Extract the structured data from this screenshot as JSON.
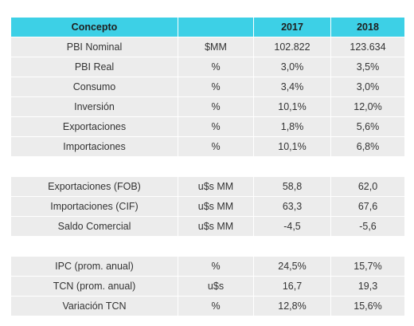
{
  "header": [
    "Concepto",
    "",
    "2017",
    "2018"
  ],
  "rows": [
    [
      "PBI Nominal",
      "$MM",
      "102.822",
      "123.634"
    ],
    [
      "PBI Real",
      "%",
      "3,0%",
      "3,5%"
    ],
    [
      "Consumo",
      "%",
      "3,4%",
      "3,0%"
    ],
    [
      "Inversión",
      "%",
      "10,1%",
      "12,0%"
    ],
    [
      "Exportaciones",
      "%",
      "1,8%",
      "5,6%"
    ],
    [
      "Importaciones",
      "%",
      "10,1%",
      "6,8%"
    ],
    [],
    [
      "Exportaciones (FOB)",
      "u$s MM",
      "58,8",
      "62,0"
    ],
    [
      "Importaciones (CIF)",
      "u$s MM",
      "63,3",
      "67,6"
    ],
    [
      "Saldo Comercial",
      "u$s MM",
      "-4,5",
      "-5,6"
    ],
    [],
    [
      "IPC (prom. anual)",
      "%",
      "24,5%",
      "15,7%"
    ],
    [
      "TCN (prom. anual)",
      "u$s",
      "16,7",
      "19,3"
    ],
    [
      "Variación TCN",
      "%",
      "12,8%",
      "15,6%"
    ]
  ]
}
